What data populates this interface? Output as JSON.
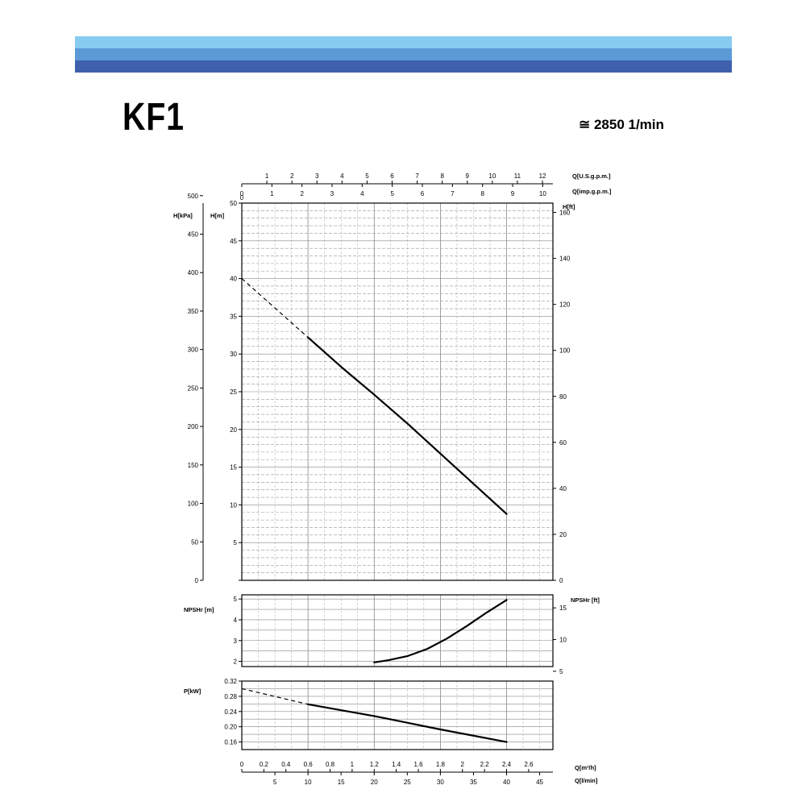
{
  "header": {
    "band_colors": [
      "#88cbf0",
      "#5b9ad6",
      "#3f60ad"
    ],
    "title": "KF1",
    "speed": "≅ 2850 1/min"
  },
  "chart_data": {
    "type": "line",
    "axes": {
      "q_usgpm": {
        "label": "Q[U.S.g.p.m.]",
        "ticks": [
          1,
          2,
          3,
          4,
          5,
          6,
          7,
          8,
          9,
          10,
          11,
          12
        ]
      },
      "q_impgpm": {
        "label": "Q[imp.g.p.m.]",
        "ticks": [
          0,
          1,
          2,
          3,
          4,
          5,
          6,
          7,
          8,
          9,
          10
        ]
      },
      "q_m3h": {
        "label": "Q[m³/h]",
        "ticks": [
          "0",
          "0.2",
          "0.4",
          "0.6",
          "0.8",
          "1",
          "1.2",
          "1.4",
          "1.6",
          "1.8",
          "2",
          "2.2",
          "2.4",
          "2.6"
        ]
      },
      "q_lmin": {
        "label": "Q[l/min]",
        "range": [
          0,
          47
        ],
        "ticks": [
          5,
          10,
          15,
          20,
          25,
          30,
          35,
          40,
          45
        ]
      },
      "h_kpa": {
        "label": "H[kPa]",
        "ticks": [
          0,
          50,
          100,
          150,
          200,
          250,
          300,
          350,
          400,
          450,
          500
        ]
      },
      "h_m": {
        "label": "H[m]",
        "range": [
          0,
          50
        ],
        "ticks": [
          5,
          10,
          15,
          20,
          25,
          30,
          35,
          40,
          45,
          50
        ]
      },
      "h_ft": {
        "label": "H[ft]",
        "ticks": [
          0,
          20,
          40,
          60,
          80,
          100,
          120,
          140,
          160
        ]
      },
      "npsh_m": {
        "label": "NPSHr [m]",
        "range": [
          1.75,
          5.2
        ],
        "ticks": [
          2,
          3,
          4,
          5
        ]
      },
      "npsh_ft": {
        "label": "NPSHr [ft]",
        "ticks": [
          5,
          10,
          15
        ]
      },
      "p_kw": {
        "label": "P[kW]",
        "range": [
          0.14,
          0.32
        ],
        "ticks": [
          "0.16",
          "0.20",
          "0.24",
          "0.28",
          "0.32"
        ]
      }
    },
    "series": [
      {
        "panel": "head",
        "dashed": [
          [
            0,
            40
          ],
          [
            10,
            32.2
          ]
        ],
        "solid": [
          [
            10,
            32.2
          ],
          [
            15,
            28.3
          ],
          [
            20,
            24.6
          ],
          [
            25,
            20.8
          ],
          [
            30,
            16.8
          ],
          [
            35,
            12.8
          ],
          [
            40,
            8.8
          ]
        ]
      },
      {
        "panel": "npsh",
        "solid": [
          [
            20,
            1.95
          ],
          [
            22,
            2.05
          ],
          [
            25,
            2.25
          ],
          [
            28,
            2.6
          ],
          [
            31,
            3.1
          ],
          [
            34,
            3.7
          ],
          [
            37,
            4.35
          ],
          [
            40,
            4.95
          ]
        ]
      },
      {
        "panel": "power",
        "dashed": [
          [
            0,
            0.3
          ],
          [
            10,
            0.259
          ]
        ],
        "solid": [
          [
            10,
            0.259
          ],
          [
            20,
            0.228
          ],
          [
            30,
            0.193
          ],
          [
            40,
            0.16
          ]
        ]
      }
    ]
  }
}
